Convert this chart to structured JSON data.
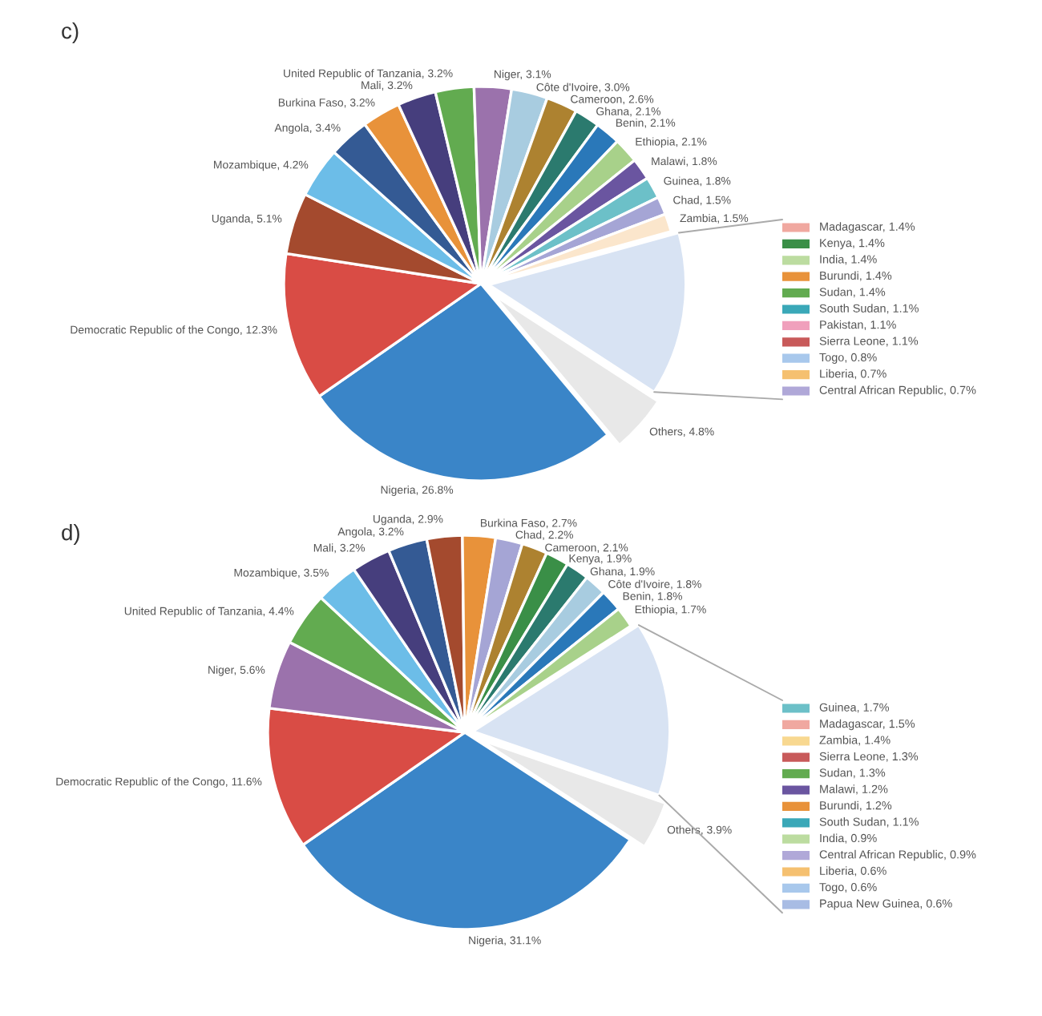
{
  "chart_data": [
    {
      "type": "pie",
      "title": "c)",
      "categories": [
        "Nigeria",
        "Democratic Republic of the Congo",
        "Uganda",
        "Mozambique",
        "Angola",
        "Burkina Faso",
        "Mali",
        "United Republic of Tanzania",
        "Niger",
        "Côte d'Ivoire",
        "Cameroon",
        "Ghana",
        "Benin",
        "Ethiopia",
        "Malawi",
        "Guinea",
        "Chad",
        "Zambia",
        null,
        "Others"
      ],
      "values": [
        26.8,
        12.3,
        5.1,
        4.2,
        3.4,
        3.2,
        3.2,
        3.2,
        3.1,
        3.0,
        2.6,
        2.1,
        2.1,
        2.1,
        1.8,
        1.8,
        1.5,
        1.5,
        13.6,
        4.8
      ],
      "value_labels": [
        "26.8%",
        "12.3%",
        "5.1%",
        "4.2%",
        "3.4%",
        "3.2%",
        "3.2%",
        "3.2%",
        "3.1%",
        "3.0%",
        "2.6%",
        "2.1%",
        "2.1%",
        "2.1%",
        "1.8%",
        "1.8%",
        "1.5%",
        "1.5%",
        null,
        "4.8%"
      ],
      "colors": [
        "#3a85c8",
        "#d94c45",
        "#a44a2e",
        "#6cbde8",
        "#345a94",
        "#e8923a",
        "#463e7d",
        "#62ab50",
        "#9b72ac",
        "#a8cce0",
        "#ad8230",
        "#2b7a6e",
        "#2a78b9",
        "#a8d18a",
        "#6a55a0",
        "#6cc0c8",
        "#a5a5d5",
        "#fbe6cc",
        "#d8e3f3",
        "#e8e8e8"
      ]
    },
    {
      "type": "other",
      "categories": [
        "Madagascar, 1.4%",
        "Kenya, 1.4%",
        "India, 1.4%",
        "Burundi, 1.4%",
        "Sudan, 1.4%",
        "South Sudan, 1.1%",
        "Pakistan, 1.1%",
        "Sierra Leone, 1.1%",
        "Togo, 0.8%",
        "Liberia, 0.7%",
        "Central African Republic, 0.7%"
      ],
      "colors": [
        "#f0a8a0",
        "#3a8f47",
        "#bcdca0",
        "#e8923a",
        "#62ab50",
        "#3aa8b8",
        "#f0a0bc",
        "#c85a5a",
        "#a8c8ec",
        "#f5c070",
        "#b0a8d8"
      ]
    },
    {
      "type": "pie",
      "title": "d)",
      "categories": [
        "Nigeria",
        "Democratic Republic of the Congo",
        "Niger",
        "United Republic of Tanzania",
        "Mozambique",
        "Mali",
        "Angola",
        "Uganda",
        "Burkina Faso",
        "Chad",
        "Cameroon",
        "Kenya",
        "Ghana",
        "Côte d'Ivoire",
        "Benin",
        "Ethiopia",
        null,
        "Others"
      ],
      "values": [
        31.1,
        11.6,
        5.6,
        4.4,
        3.5,
        3.2,
        3.2,
        2.9,
        2.7,
        2.2,
        2.1,
        1.9,
        1.9,
        1.8,
        1.8,
        1.7,
        14.3,
        3.9
      ],
      "value_labels": [
        "31.1%",
        "11.6%",
        "5.6%",
        "4.4%",
        "3.5%",
        "3.2%",
        "3.2%",
        "2.9%",
        "2.7%",
        "2.2%",
        "2.1%",
        "1.9%",
        "1.9%",
        "1.8%",
        "1.8%",
        "1.7%",
        null,
        "3.9%"
      ],
      "colors": [
        "#3a85c8",
        "#d94c45",
        "#9b72ac",
        "#62ab50",
        "#6cbde8",
        "#463e7d",
        "#345a94",
        "#a44a2e",
        "#e8923a",
        "#a5a5d5",
        "#ad8230",
        "#3a8f47",
        "#2b7a6e",
        "#a8cce0",
        "#2a78b9",
        "#a8d18a",
        "#d8e3f3",
        "#e8e8e8"
      ]
    },
    {
      "type": "other",
      "categories": [
        "Guinea, 1.7%",
        "Madagascar, 1.5%",
        "Zambia, 1.4%",
        "Sierra Leone, 1.3%",
        "Sudan, 1.3%",
        "Malawi, 1.2%",
        "Burundi, 1.2%",
        "South Sudan, 1.1%",
        "India, 0.9%",
        "Central African Republic, 0.9%",
        "Liberia, 0.6%",
        "Togo, 0.6%",
        "Papua New Guinea, 0.6%"
      ],
      "colors": [
        "#6cc0c8",
        "#f0a8a0",
        "#f8d890",
        "#c85a5a",
        "#62ab50",
        "#6a55a0",
        "#e8923a",
        "#3aa8b8",
        "#bcdca0",
        "#b0a8d8",
        "#f5c070",
        "#a8c8ec",
        "#a8bce4"
      ]
    }
  ]
}
